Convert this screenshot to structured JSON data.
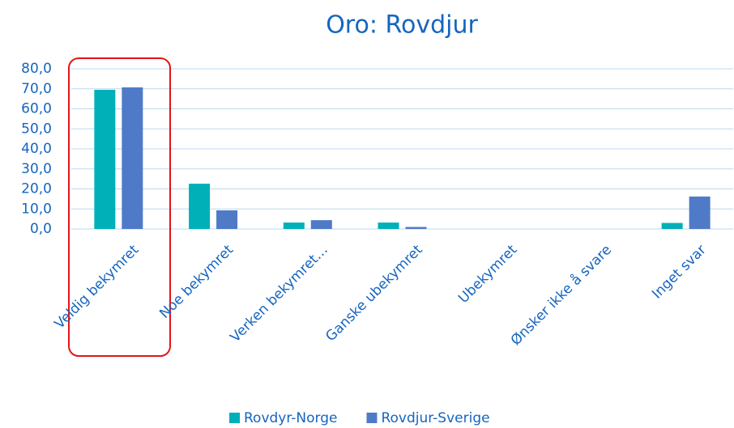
{
  "chart_data": {
    "type": "bar",
    "title": "Oro: Rovdjur",
    "categories": [
      "Veldig bekymret",
      "Noe bekymret",
      "Verken bekymret…",
      "Ganske ubekymret",
      "Ubekymret",
      "Ønsker ikke å svare",
      "Inget svar"
    ],
    "series": [
      {
        "name": "Rovdyr-Norge",
        "color": "#00b0b9",
        "values": [
          69.5,
          22.6,
          3.2,
          3.2,
          0,
          0,
          3.0
        ]
      },
      {
        "name": "Rovdjur-Sverige",
        "color": "#4f7ac7",
        "values": [
          70.7,
          9.3,
          4.4,
          1.0,
          0,
          0,
          16.2
        ]
      }
    ],
    "ylim": [
      0,
      80
    ],
    "yticks": [
      {
        "value": 0,
        "label": "0,0"
      },
      {
        "value": 10,
        "label": "10,0"
      },
      {
        "value": 20,
        "label": "20,0"
      },
      {
        "value": 30,
        "label": "30,0"
      },
      {
        "value": 40,
        "label": "40,0"
      },
      {
        "value": 50,
        "label": "50,0"
      },
      {
        "value": 60,
        "label": "60,0"
      },
      {
        "value": 70,
        "label": "70,0"
      },
      {
        "value": 80,
        "label": "80,0"
      }
    ],
    "grid": true,
    "legend": "bottom"
  }
}
